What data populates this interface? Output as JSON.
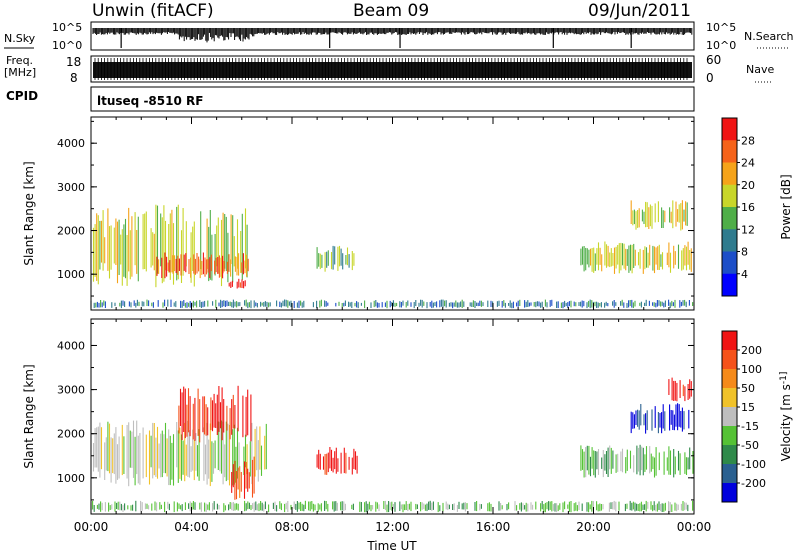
{
  "header": {
    "radar": "Unwin (fitACF)",
    "beam": "Beam 09",
    "date": "09/Jun/2011"
  },
  "strip_labels": {
    "nsky": "N.Sky",
    "nsearch": "N.Search",
    "freq_line1": "Freq.",
    "freq_line2": "[MHz]",
    "nave": "Nave",
    "cpid": "CPID",
    "cpid_value": "ltuseq -8510 RF",
    "noise_left_top": "10^5",
    "noise_left_bottom": "10^0",
    "noise_right_top": "10^5",
    "noise_right_bottom": "10^0",
    "freq_top": "18",
    "freq_bottom": "8",
    "nave_top": "60",
    "nave_bottom": "0"
  },
  "colors": {
    "power_scale": [
      "#0000ff",
      "#1c4ec8",
      "#2f7b8e",
      "#4fae48",
      "#c8d62a",
      "#f5a31a",
      "#f5631a",
      "#f01414"
    ],
    "velocity_scale": [
      "#0000dd",
      "#2a6090",
      "#2f8a4a",
      "#55c235",
      "#bebebe",
      "#f0c22a",
      "#f58a1a",
      "#f5521a",
      "#f01414"
    ]
  },
  "chart_data": [
    {
      "type": "heatmap",
      "name": "power",
      "xlabel": "",
      "ylabel": "Slant Range [km]",
      "colorbar_label": "Power [dB]",
      "colorbar_ticks": [
        "28",
        "24",
        "20",
        "16",
        "12",
        "8",
        "4"
      ],
      "ylim": [
        180,
        4600
      ],
      "y_ticks": [
        "1000",
        "2000",
        "3000",
        "4000"
      ],
      "xlim_hours": [
        0,
        24
      ],
      "regions": [
        {
          "t0": 0.1,
          "t1": 6.4,
          "r0": 700,
          "r1": 2600,
          "color_index": 4
        },
        {
          "t0": 2.5,
          "t1": 6.3,
          "r0": 900,
          "r1": 1500,
          "color_index": 6
        },
        {
          "t0": 5.5,
          "t1": 6.2,
          "r0": 650,
          "r1": 900,
          "color_index": 7
        },
        {
          "t0": 0.0,
          "t1": 24.0,
          "r0": 220,
          "r1": 420,
          "color_index": 2
        },
        {
          "t0": 9.0,
          "t1": 10.5,
          "r0": 1050,
          "r1": 1650,
          "color_index": 3
        },
        {
          "t0": 19.5,
          "t1": 24.0,
          "r0": 1000,
          "r1": 1750,
          "color_index": 4
        },
        {
          "t0": 21.5,
          "t1": 23.8,
          "r0": 2000,
          "r1": 2700,
          "color_index": 4
        }
      ]
    },
    {
      "type": "heatmap",
      "name": "velocity",
      "xlabel": "Time UT",
      "ylabel": "Slant Range [km]",
      "colorbar_label": "Velocity [m s^-1]",
      "colorbar_ticks": [
        "200",
        "100",
        "50",
        "15",
        "-15",
        "-50",
        "-100",
        "-200"
      ],
      "ylim": [
        180,
        4600
      ],
      "y_ticks": [
        "1000",
        "2000",
        "3000",
        "4000"
      ],
      "x_ticks": [
        "00:00",
        "04:00",
        "08:00",
        "12:00",
        "16:00",
        "20:00",
        "00:00"
      ],
      "xlim_hours": [
        0,
        24
      ],
      "regions": [
        {
          "t0": 0.1,
          "t1": 7.0,
          "r0": 800,
          "r1": 2300,
          "color_index": 4
        },
        {
          "t0": 3.5,
          "t1": 6.4,
          "r0": 1800,
          "r1": 3100,
          "color_index": 8
        },
        {
          "t0": 5.6,
          "t1": 6.5,
          "r0": 500,
          "r1": 1500,
          "color_index": 7
        },
        {
          "t0": 0.0,
          "t1": 24.0,
          "r0": 220,
          "r1": 480,
          "color_index": 3
        },
        {
          "t0": 9.0,
          "t1": 10.6,
          "r0": 1050,
          "r1": 1700,
          "color_index": 8
        },
        {
          "t0": 19.5,
          "t1": 24.0,
          "r0": 1000,
          "r1": 1750,
          "color_index": 3
        },
        {
          "t0": 21.5,
          "t1": 23.8,
          "r0": 2000,
          "r1": 2700,
          "color_index": 0
        },
        {
          "t0": 23.0,
          "t1": 24.0,
          "r0": 2700,
          "r1": 3300,
          "color_index": 8
        }
      ]
    }
  ]
}
